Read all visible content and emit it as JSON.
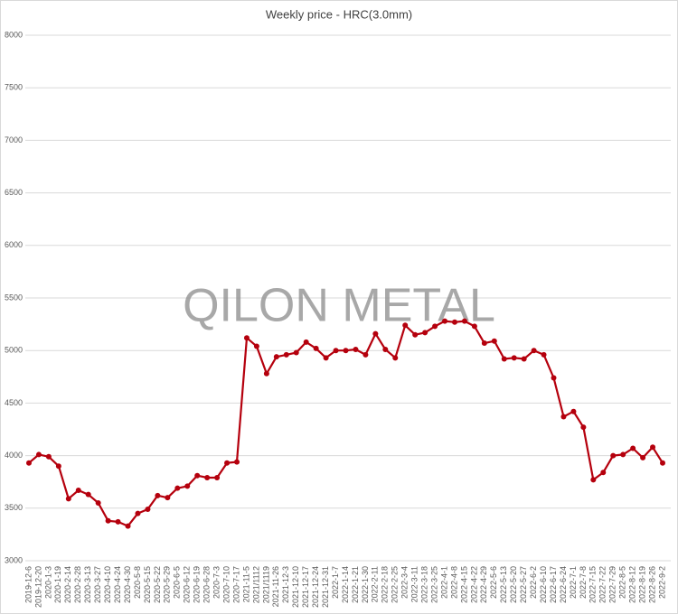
{
  "chart_data": {
    "type": "line",
    "title": "Weekly price - HRC(3.0mm)",
    "watermark": "QILON METAL",
    "categories": [
      "2019-12-6",
      "2019-12-20",
      "2020-1-3",
      "2020-1-19",
      "2020-2-14",
      "2020-2-28",
      "2020-3-13",
      "2020-3-27",
      "2020-4-10",
      "2020-4-24",
      "2020-4-30",
      "2020-5-8",
      "2020-5-15",
      "2020-5-22",
      "2020-5-29",
      "2020-6-5",
      "2020-6-12",
      "2020-6-19",
      "2020-6-28",
      "2020-7-3",
      "2020-7-10",
      "2020-7-17",
      "2021-11-5",
      "2021/1112",
      "2021/1119",
      "2021-11-26",
      "2021-12-3",
      "2021-12-10",
      "2021-12-17",
      "2021-12-24",
      "2021-12-31",
      "2022-1-7",
      "2022-1-14",
      "2022-1-21",
      "2022-1-30",
      "2022-2-11",
      "2022-2-18",
      "2022-2-25",
      "2022-3-4",
      "2022-3-11",
      "2022-3-18",
      "2022-3-25",
      "2022-4-1",
      "2022-4-8",
      "2022-4-15",
      "2022-4-22",
      "2022-4-29",
      "2022-5-6",
      "2022-5-13",
      "2022-5-20",
      "2022-5-27",
      "2022-6-2",
      "2022-6-10",
      "2022-6-17",
      "2022-6-24",
      "2022-7-1",
      "2022-7-8",
      "2022-7-15",
      "2022-7-22",
      "2022-7-29",
      "2022-8-5",
      "2022-8-12",
      "2022-8-19",
      "2022-8-26",
      "2022-9-2"
    ],
    "series": [
      {
        "color": "#b5000d",
        "values": [
          3930,
          4010,
          3990,
          3900,
          3590,
          3670,
          3630,
          3550,
          3380,
          3370,
          3330,
          3450,
          3490,
          3620,
          3600,
          3690,
          3710,
          3810,
          3790,
          3790,
          3930,
          3940,
          5120,
          5040,
          4780,
          4940,
          4960,
          4980,
          5080,
          5020,
          4930,
          5000,
          5000,
          5010,
          4960,
          5160,
          5010,
          4930,
          5240,
          5150,
          5170,
          5230,
          5280,
          5270,
          5280,
          5230,
          5070,
          5090,
          4920,
          4930,
          4920,
          5000,
          4960,
          4740,
          4370,
          4420,
          4270,
          3770,
          3840,
          4000,
          4010,
          4070,
          3980,
          4080,
          3930
        ]
      }
    ],
    "ylim": [
      3000,
      8000
    ],
    "yticks": [
      3000,
      3500,
      4000,
      4500,
      5000,
      5500,
      6000,
      6500,
      7000,
      7500,
      8000
    ],
    "grid": true
  }
}
